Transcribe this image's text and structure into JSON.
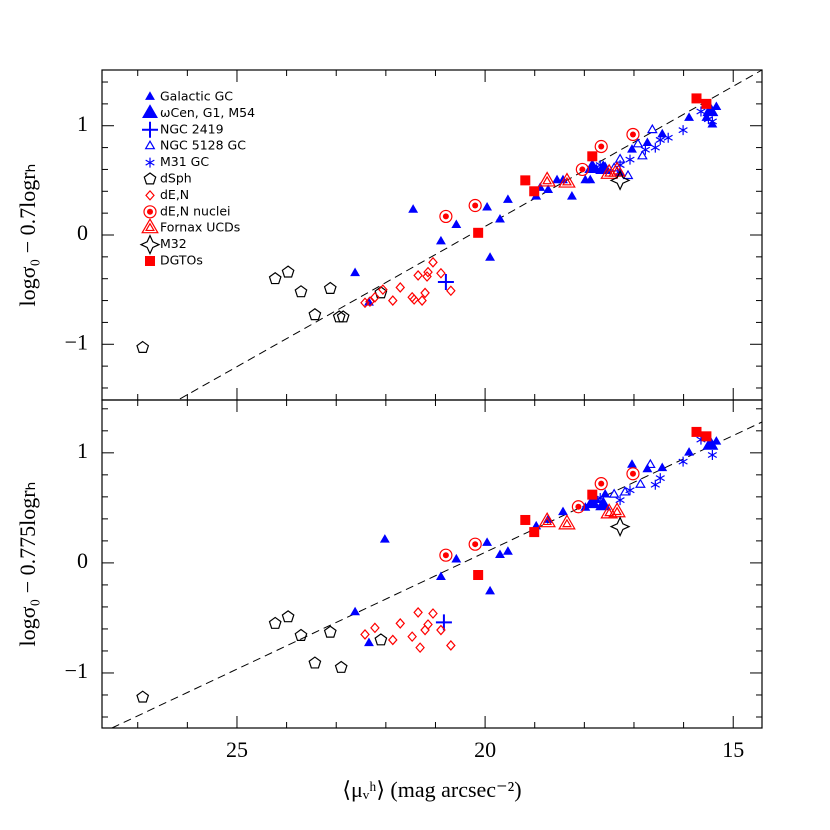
{
  "chart_data": {
    "type": "scatter",
    "xlabel": "⟨μᵥʰ⟩ (mag arcsec⁻²)",
    "xlim": [
      27.72,
      14.42
    ],
    "xticks": [
      25,
      20,
      15
    ],
    "xminorticks": [
      27,
      26,
      24,
      23,
      22,
      21,
      19,
      18,
      17,
      16
    ],
    "legend": "top-left",
    "series": [
      {
        "name": "Galactic GC",
        "color": "#0000ff",
        "marker": "tri-small"
      },
      {
        "name": "ωCen, G1, M54",
        "color": "#0000ff",
        "marker": "tri-large"
      },
      {
        "name": "NGC 2419",
        "color": "#0000ff",
        "marker": "plus"
      },
      {
        "name": "NGC 5128 GC",
        "color": "#0000ff",
        "marker": "tri-open"
      },
      {
        "name": "M31 GC",
        "color": "#0000ff",
        "marker": "asterisk"
      },
      {
        "name": "dSph",
        "color": "#000000",
        "marker": "pentagon-open"
      },
      {
        "name": "dE,N",
        "color": "#ff0000",
        "marker": "diamond-open"
      },
      {
        "name": "dE,N nuclei",
        "color": "#ff0000",
        "marker": "circle-dot"
      },
      {
        "name": "Fornax UCDs",
        "color": "#ff0000",
        "marker": "tri-open-large"
      },
      {
        "name": "M32",
        "color": "#000000",
        "marker": "star-open"
      },
      {
        "name": "DGTOs",
        "color": "#ff0000",
        "marker": "square"
      }
    ],
    "panels": [
      {
        "ylabel": "logσ₀ − 0.7logrₕ",
        "ylim": [
          -1.51,
          1.51
        ],
        "yticks": [
          {
            "value": -1,
            "label": "−1"
          },
          0,
          1
        ],
        "yminorticks": [
          -1.4,
          -1.2,
          -0.8,
          -0.6,
          -0.4,
          -0.2,
          0.2,
          0.4,
          0.6,
          0.8,
          1.2,
          1.4
        ],
        "fit": {
          "x": [
            26.15,
            14.42
          ],
          "y": [
            -1.5,
            1.51
          ]
        },
        "points": [
          {
            "x": [
              22.62,
              22.34,
              21.45,
              20.89,
              20.58,
              19.96,
              19.9,
              19.7,
              19.54,
              18.97,
              18.89,
              18.73,
              18.55,
              18.43,
              18.25,
              17.98,
              17.88,
              17.76,
              17.58,
              17.28,
              17.04,
              16.73,
              16.43,
              15.89,
              15.54,
              15.34,
              15.42
            ],
            "values": [
              -0.35,
              -0.62,
              0.23,
              -0.06,
              0.09,
              0.25,
              -0.21,
              0.14,
              0.32,
              0.35,
              0.43,
              0.41,
              0.5,
              0.5,
              0.35,
              0.5,
              0.5,
              0.6,
              0.62,
              0.57,
              0.78,
              0.84,
              0.92,
              1.07,
              1.07,
              1.17,
              1.01
            ]
          },
          {
            "x": [
              17.84,
              17.62,
              15.46
            ],
            "values": [
              0.61,
              0.6,
              1.13
            ]
          },
          {
            "x": [
              20.79
            ],
            "values": [
              -0.43
            ]
          },
          {
            "x": [
              17.4,
              17.28,
              16.92,
              16.63,
              17.12,
              16.83
            ],
            "values": [
              0.61,
              0.69,
              0.83,
              0.96,
              0.54,
              0.72
            ]
          },
          {
            "x": [
              17.68,
              17.08,
              16.77,
              16.47,
              16.31,
              16.01,
              15.65,
              15.5,
              15.42,
              16.57,
              17.28
            ],
            "values": [
              0.64,
              0.69,
              0.78,
              0.87,
              0.89,
              0.96,
              1.13,
              1.06,
              1.04,
              0.8,
              0.64
            ]
          },
          {
            "x": [
              26.9,
              24.23,
              23.97,
              23.71,
              23.43,
              23.12,
              22.94,
              22.86,
              22.1
            ],
            "values": [
              -1.03,
              -0.4,
              -0.34,
              -0.52,
              -0.73,
              -0.49,
              -0.75,
              -0.75,
              -0.53
            ]
          },
          {
            "x": [
              22.42,
              22.32,
              22.22,
              22.06,
              21.86,
              21.71,
              21.47,
              21.43,
              21.35,
              21.27,
              21.21,
              21.17,
              21.15,
              21.05,
              20.89,
              20.69
            ],
            "values": [
              -0.62,
              -0.61,
              -0.57,
              -0.5,
              -0.6,
              -0.48,
              -0.57,
              -0.59,
              -0.37,
              -0.6,
              -0.53,
              -0.38,
              -0.34,
              -0.25,
              -0.35,
              -0.51
            ]
          },
          {
            "x": [
              20.79,
              20.2,
              18.04,
              17.66,
              17.02
            ],
            "values": [
              0.17,
              0.27,
              0.6,
              0.81,
              0.92
            ]
          },
          {
            "x": [
              18.75,
              18.35,
              17.5,
              17.34
            ],
            "values": [
              0.49,
              0.48,
              0.56,
              0.58
            ]
          },
          {
            "x": [
              17.28
            ],
            "values": [
              0.5
            ]
          },
          {
            "x": [
              20.14,
              19.19,
              19.01,
              17.84,
              15.74,
              15.54
            ],
            "values": [
              0.02,
              0.5,
              0.4,
              0.72,
              1.25,
              1.2
            ]
          }
        ]
      },
      {
        "ylabel": "logσ₀ − 0.775logrₕ",
        "ylim": [
          -1.5,
          1.48
        ],
        "yticks": [
          {
            "value": -1,
            "label": "−1"
          },
          0,
          1
        ],
        "yminorticks": [
          -1.4,
          -1.2,
          -0.8,
          -0.6,
          -0.4,
          -0.2,
          0.2,
          0.4,
          0.6,
          0.8,
          1.2,
          1.4
        ],
        "fit": {
          "x": [
            27.52,
            14.42
          ],
          "y": [
            -1.5,
            1.28
          ]
        },
        "points": [
          {
            "x": [
              22.02,
              22.62,
              22.34,
              20.89,
              20.58,
              19.96,
              19.9,
              19.7,
              19.54,
              18.97,
              18.73,
              18.43,
              17.98,
              17.76,
              17.58,
              17.04,
              16.73,
              16.43,
              15.89,
              15.34
            ],
            "values": [
              0.21,
              -0.45,
              -0.73,
              -0.13,
              0.03,
              0.18,
              -0.26,
              0.07,
              0.1,
              0.33,
              0.39,
              0.46,
              0.5,
              0.57,
              0.62,
              0.89,
              0.85,
              0.86,
              1.0,
              1.1
            ]
          },
          {
            "x": [
              17.84,
              17.62,
              15.46
            ],
            "values": [
              0.54,
              0.52,
              1.07
            ]
          },
          {
            "x": [
              20.83
            ],
            "values": [
              -0.54
            ]
          },
          {
            "x": [
              17.4,
              17.18,
              16.67,
              16.87
            ],
            "values": [
              0.62,
              0.64,
              0.89,
              0.71
            ]
          },
          {
            "x": [
              17.68,
              17.08,
              16.47,
              16.01,
              15.65,
              15.42,
              16.57,
              17.28
            ],
            "values": [
              0.59,
              0.66,
              0.77,
              0.92,
              1.12,
              0.98,
              0.71,
              0.57
            ]
          },
          {
            "x": [
              26.9,
              24.23,
              23.97,
              23.71,
              23.43,
              23.12,
              22.9,
              22.1
            ],
            "values": [
              -1.22,
              -0.55,
              -0.49,
              -0.66,
              -0.91,
              -0.63,
              -0.95,
              -0.7
            ]
          },
          {
            "x": [
              22.42,
              22.22,
              21.86,
              21.71,
              21.47,
              21.35,
              21.21,
              21.15,
              21.05,
              20.89,
              20.69,
              21.31
            ],
            "values": [
              -0.65,
              -0.59,
              -0.7,
              -0.55,
              -0.67,
              -0.45,
              -0.61,
              -0.56,
              -0.46,
              -0.61,
              -0.75,
              -0.77
            ]
          },
          {
            "x": [
              20.79,
              20.2,
              18.12,
              17.66,
              17.02
            ],
            "values": [
              0.07,
              0.17,
              0.51,
              0.72,
              0.81
            ]
          },
          {
            "x": [
              18.75,
              18.35,
              17.5,
              17.34
            ],
            "values": [
              0.37,
              0.35,
              0.45,
              0.46
            ]
          },
          {
            "x": [
              17.28
            ],
            "values": [
              0.33
            ]
          },
          {
            "x": [
              20.14,
              19.19,
              19.01,
              17.84,
              15.74,
              15.54
            ],
            "values": [
              -0.11,
              0.39,
              0.28,
              0.62,
              1.19,
              1.15
            ]
          }
        ]
      }
    ]
  }
}
